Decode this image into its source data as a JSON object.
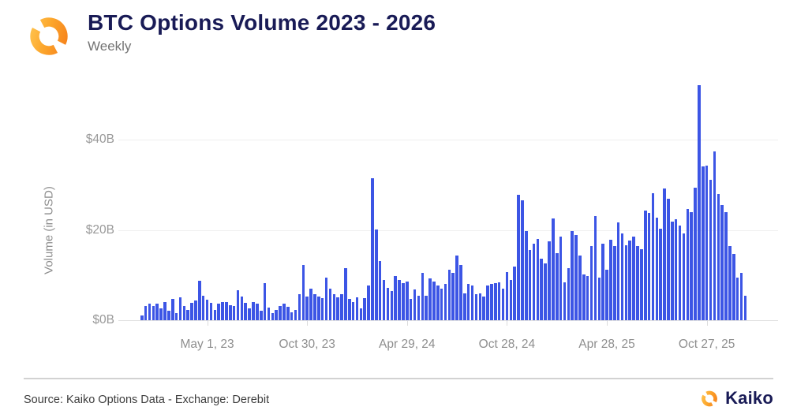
{
  "header": {
    "title": "BTC Options Volume 2023 - 2026",
    "subtitle": "Weekly"
  },
  "chart_data": {
    "type": "bar",
    "title": "BTC Options Volume 2023 - 2026",
    "subtitle": "Weekly",
    "x_unit": "week",
    "num_bars": 158,
    "ylabel": "Volume (in USD)",
    "ylim": [
      0,
      55
    ],
    "grid": "horizontal-only",
    "legend": "none",
    "y_ticks": [
      {
        "value": 0,
        "label": "$0B"
      },
      {
        "value": 20,
        "label": "$20B"
      },
      {
        "value": 40,
        "label": "$40B"
      }
    ],
    "x_ticks": [
      {
        "index": 17,
        "label": "May 1, 23"
      },
      {
        "index": 43,
        "label": "Oct 30, 23"
      },
      {
        "index": 69,
        "label": "Apr 29, 24"
      },
      {
        "index": 95,
        "label": "Oct 28, 24"
      },
      {
        "index": 121,
        "label": "Apr 28, 25"
      },
      {
        "index": 147,
        "label": "Oct 27, 25"
      }
    ],
    "values_billions_usd": [
      1.1,
      3.2,
      3.6,
      3.2,
      3.6,
      2.7,
      4.0,
      2.1,
      4.7,
      1.6,
      5.1,
      3.1,
      2.3,
      3.8,
      4.4,
      8.7,
      5.4,
      4.5,
      3.8,
      2.3,
      3.7,
      4.1,
      4.1,
      3.4,
      3.1,
      6.6,
      5.3,
      3.8,
      2.7,
      4.0,
      3.7,
      2.1,
      8.2,
      2.8,
      1.5,
      2.2,
      3.2,
      3.7,
      3.0,
      1.7,
      2.3,
      5.7,
      12.3,
      5.3,
      7.0,
      5.7,
      5.3,
      4.9,
      9.5,
      7.0,
      5.7,
      5.1,
      5.7,
      11.5,
      4.7,
      4.1,
      5.1,
      2.7,
      4.9,
      7.6,
      31.5,
      20.1,
      13.1,
      8.9,
      7.1,
      6.4,
      9.7,
      8.9,
      8.2,
      8.5,
      4.7,
      6.8,
      5.5,
      10.4,
      5.5,
      9.3,
      8.5,
      7.7,
      7.0,
      8.1,
      11.2,
      10.4,
      14.4,
      12.3,
      6.0,
      8.0,
      7.6,
      5.7,
      5.9,
      5.3,
      7.6,
      8.0,
      8.2,
      8.4,
      7.0,
      10.6,
      8.9,
      11.8,
      27.7,
      26.5,
      19.7,
      15.5,
      16.9,
      18.0,
      13.6,
      12.5,
      17.4,
      22.6,
      14.9,
      18.6,
      8.4,
      11.5,
      19.7,
      18.9,
      14.4,
      10.2,
      9.7,
      16.5,
      23.1,
      9.5,
      16.9,
      11.1,
      17.8,
      16.5,
      21.6,
      19.2,
      16.6,
      17.6,
      18.6,
      16.5,
      15.7,
      24.3,
      23.7,
      28.2,
      22.7,
      20.2,
      29.1,
      26.9,
      21.8,
      22.3,
      20.9,
      19.3,
      24.6,
      24.0,
      29.4,
      52.0,
      34.1,
      34.3,
      31.1,
      37.3,
      28.0,
      25.5,
      24.0,
      16.5,
      14.7,
      9.5,
      10.4,
      5.5
    ]
  },
  "footer": {
    "source": "Source: Kaiko Options Data - Exchange: Derebit",
    "brand": "Kaiko"
  },
  "colors": {
    "bar": "#3c55e5",
    "title_navy": "#191b56",
    "axis_text": "#8e8e8e",
    "orange_dark": "#f6821b",
    "orange_light": "#ffc24d"
  }
}
